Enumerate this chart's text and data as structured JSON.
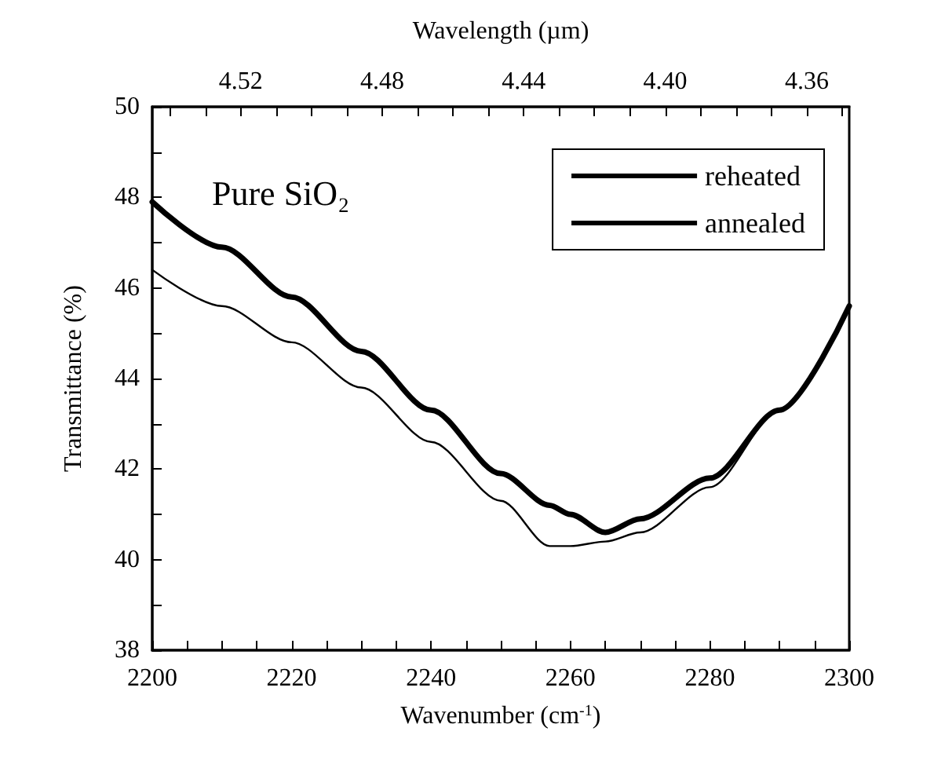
{
  "chart_data": {
    "type": "line",
    "xlabel": "Wavenumber (cm$^{-1}$)",
    "ylabel": "Transmittance (%)",
    "x2label": "Wavelength (µm)",
    "annotations": [
      "Pure SiO₂"
    ],
    "x": [
      2200,
      2210,
      2220,
      2230,
      2240,
      2250,
      2257,
      2260,
      2265,
      2270,
      2280,
      2290,
      2300
    ],
    "series": [
      {
        "name": "reheated",
        "color": "#000000",
        "values": [
          46.4,
          45.6,
          44.8,
          43.8,
          42.6,
          41.3,
          40.3,
          40.3,
          40.4,
          40.6,
          41.6,
          43.3,
          45.6
        ]
      },
      {
        "name": "annealed",
        "color": "#000000",
        "values": [
          47.9,
          46.9,
          45.8,
          44.6,
          43.3,
          41.9,
          41.2,
          41.0,
          40.6,
          40.9,
          41.8,
          43.3,
          45.6
        ]
      }
    ],
    "xlim": [
      2200,
      2300
    ],
    "xticks": [
      2200,
      {
        "value": 2205,
        "label": null
      },
      2220,
      {
        "value": 2215,
        "label": null
      },
      {
        "value": 2210,
        "label": null
      },
      2240,
      {
        "value": 2225,
        "label": null
      },
      {
        "value": 2230,
        "label": null
      },
      {
        "value": 2235,
        "label": null
      },
      {
        "value": 2245,
        "label": null
      },
      {
        "value": 2250,
        "label": null
      },
      {
        "value": 2255,
        "label": null
      },
      2260,
      {
        "value": 2265,
        "label": null
      },
      {
        "value": 2270,
        "label": null
      },
      {
        "value": 2275,
        "label": null
      },
      2280,
      {
        "value": 2285,
        "label": null
      },
      {
        "value": 2290,
        "label": null
      },
      {
        "value": 2295,
        "label": null
      },
      2300
    ],
    "ylim": [
      38,
      50
    ],
    "yticks": [
      38,
      {
        "value": 39,
        "label": null
      },
      40,
      {
        "value": 41,
        "label": null
      },
      42,
      {
        "value": 43,
        "label": null
      },
      44,
      {
        "value": 45,
        "label": null
      },
      46,
      {
        "value": 47,
        "label": null
      },
      48,
      {
        "value": 49,
        "label": null
      },
      50
    ],
    "x2lim": [
      4.545,
      4.348
    ],
    "x2ticks": [
      {
        "value": 4.54,
        "label": null
      },
      {
        "value": 4.53,
        "label": null
      },
      {
        "value": 4.52,
        "label": "4.52"
      },
      {
        "value": 4.51,
        "label": null
      },
      {
        "value": 4.5,
        "label": null
      },
      {
        "value": 4.49,
        "label": null
      },
      {
        "value": 4.48,
        "label": "4.48"
      },
      {
        "value": 4.47,
        "label": null
      },
      {
        "value": 4.46,
        "label": null
      },
      {
        "value": 4.45,
        "label": null
      },
      {
        "value": 4.44,
        "label": "4.44"
      },
      {
        "value": 4.43,
        "label": null
      },
      {
        "value": 4.42,
        "label": null
      },
      {
        "value": 4.41,
        "label": null
      },
      {
        "value": 4.4,
        "label": "4.40"
      },
      {
        "value": 4.39,
        "label": null
      },
      {
        "value": 4.38,
        "label": null
      },
      {
        "value": 4.37,
        "label": null
      },
      {
        "value": 4.36,
        "label": "4.36"
      },
      {
        "value": 4.35,
        "label": null
      }
    ],
    "grid": false,
    "legend": "top right",
    "marker": "none",
    "line_style": "solid"
  }
}
